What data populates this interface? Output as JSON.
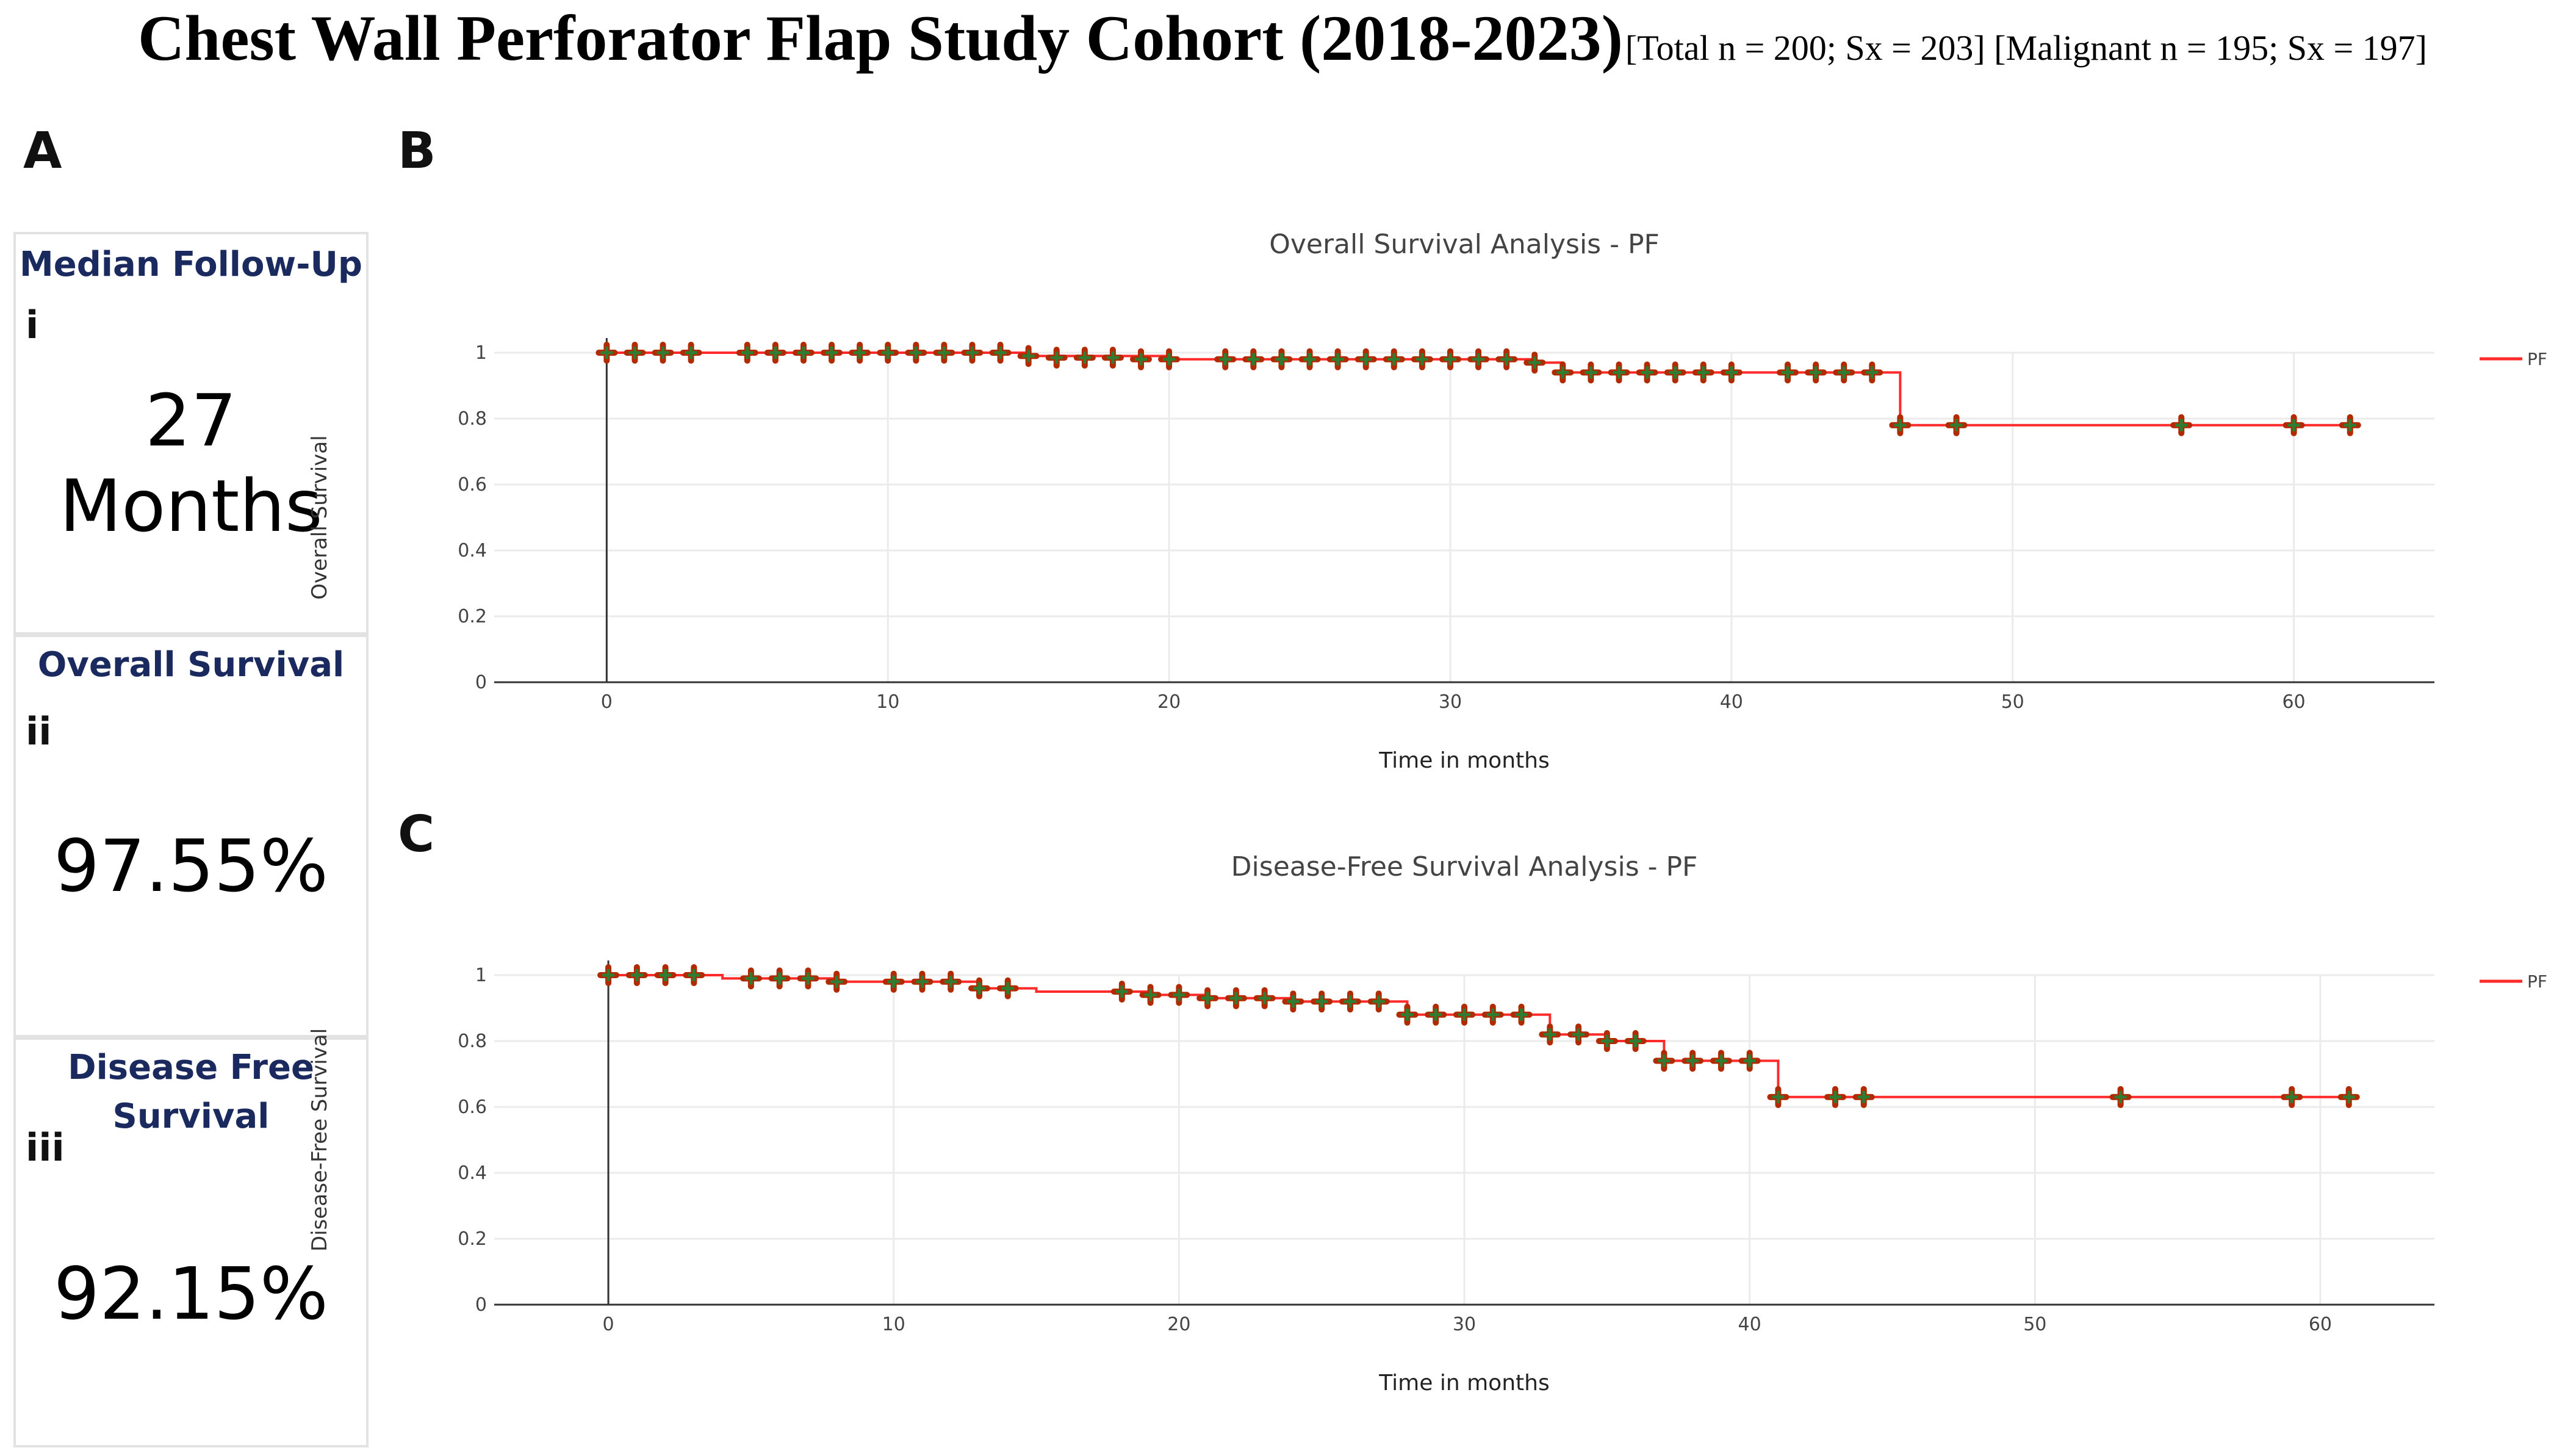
{
  "header": {
    "title": "Chest Wall Perforator Flap Study Cohort (2018-2023)",
    "subtitle": "[Total n = 200; Sx = 203] [Malignant n = 195; Sx = 197]"
  },
  "panels": {
    "a": "A",
    "b": "B",
    "c": "C"
  },
  "stats": [
    {
      "title": "Median Follow-Up",
      "roman": "i",
      "value_line1": "27",
      "value_line2": "Months"
    },
    {
      "title": "Overall Survival",
      "roman": "ii",
      "value": "97.55%"
    },
    {
      "title_line1": "Disease Free",
      "title_line2": "Survival",
      "roman": "iii",
      "value": "92.15%"
    }
  ],
  "colors": {
    "curve": "#ff2b2b",
    "censor_fill": "#2e7d32",
    "censor_stroke": "#b22b00",
    "axis": "#333333",
    "grid": "#ebebeb",
    "stat_title": "#1b2a5e"
  },
  "chart_data": [
    {
      "type": "line",
      "title": "Overall Survival Analysis - PF",
      "xlabel": "Time in months",
      "ylabel": "Overall Survival",
      "xlim": [
        -4,
        65
      ],
      "ylim": [
        0,
        1
      ],
      "xticks": [
        0,
        10,
        20,
        30,
        40,
        50,
        60
      ],
      "yticks": [
        0,
        0.2,
        0.4,
        0.6,
        0.8,
        1
      ],
      "grid": true,
      "legend": "top-right",
      "series": [
        {
          "name": "PF",
          "steps": [
            [
              0,
              1
            ],
            [
              15,
              0.99
            ],
            [
              20,
              0.98
            ],
            [
              33,
              0.97
            ],
            [
              34,
              0.94
            ],
            [
              46,
              0.78
            ],
            [
              62,
              0.78
            ]
          ],
          "censored": [
            [
              0,
              1
            ],
            [
              1,
              1
            ],
            [
              2,
              1
            ],
            [
              3,
              1
            ],
            [
              5,
              1
            ],
            [
              6,
              1
            ],
            [
              7,
              1
            ],
            [
              8,
              1
            ],
            [
              9,
              1
            ],
            [
              10,
              1
            ],
            [
              11,
              1
            ],
            [
              12,
              1
            ],
            [
              13,
              1
            ],
            [
              14,
              1
            ],
            [
              15,
              0.99
            ],
            [
              16,
              0.985
            ],
            [
              17,
              0.985
            ],
            [
              18,
              0.985
            ],
            [
              19,
              0.98
            ],
            [
              20,
              0.98
            ],
            [
              22,
              0.98
            ],
            [
              23,
              0.98
            ],
            [
              24,
              0.98
            ],
            [
              25,
              0.98
            ],
            [
              26,
              0.98
            ],
            [
              27,
              0.98
            ],
            [
              28,
              0.98
            ],
            [
              29,
              0.98
            ],
            [
              30,
              0.98
            ],
            [
              31,
              0.98
            ],
            [
              32,
              0.98
            ],
            [
              33,
              0.97
            ],
            [
              34,
              0.94
            ],
            [
              35,
              0.94
            ],
            [
              36,
              0.94
            ],
            [
              37,
              0.94
            ],
            [
              38,
              0.94
            ],
            [
              39,
              0.94
            ],
            [
              40,
              0.94
            ],
            [
              42,
              0.94
            ],
            [
              43,
              0.94
            ],
            [
              44,
              0.94
            ],
            [
              45,
              0.94
            ],
            [
              46,
              0.78
            ],
            [
              48,
              0.78
            ],
            [
              56,
              0.78
            ],
            [
              60,
              0.78
            ],
            [
              62,
              0.78
            ]
          ]
        }
      ]
    },
    {
      "type": "line",
      "title": "Disease-Free Survival Analysis - PF",
      "xlabel": "Time in months",
      "ylabel": "Disease-Free Survival",
      "xlim": [
        -4,
        64
      ],
      "ylim": [
        0,
        1
      ],
      "xticks": [
        0,
        10,
        20,
        30,
        40,
        50,
        60
      ],
      "yticks": [
        0,
        0.2,
        0.4,
        0.6,
        0.8,
        1
      ],
      "grid": true,
      "legend": "top-right",
      "series": [
        {
          "name": "PF",
          "steps": [
            [
              0,
              1
            ],
            [
              4,
              0.99
            ],
            [
              8,
              0.98
            ],
            [
              13,
              0.96
            ],
            [
              15,
              0.95
            ],
            [
              19,
              0.94
            ],
            [
              21,
              0.93
            ],
            [
              24,
              0.92
            ],
            [
              28,
              0.88
            ],
            [
              33,
              0.82
            ],
            [
              35,
              0.8
            ],
            [
              37,
              0.74
            ],
            [
              41,
              0.63
            ],
            [
              61,
              0.63
            ]
          ],
          "censored": [
            [
              0,
              1
            ],
            [
              1,
              1
            ],
            [
              2,
              1
            ],
            [
              3,
              1
            ],
            [
              5,
              0.99
            ],
            [
              6,
              0.99
            ],
            [
              7,
              0.99
            ],
            [
              8,
              0.98
            ],
            [
              10,
              0.98
            ],
            [
              11,
              0.98
            ],
            [
              12,
              0.98
            ],
            [
              13,
              0.96
            ],
            [
              14,
              0.96
            ],
            [
              18,
              0.95
            ],
            [
              19,
              0.94
            ],
            [
              20,
              0.94
            ],
            [
              21,
              0.93
            ],
            [
              22,
              0.93
            ],
            [
              23,
              0.93
            ],
            [
              24,
              0.92
            ],
            [
              25,
              0.92
            ],
            [
              26,
              0.92
            ],
            [
              27,
              0.92
            ],
            [
              28,
              0.88
            ],
            [
              29,
              0.88
            ],
            [
              30,
              0.88
            ],
            [
              31,
              0.88
            ],
            [
              32,
              0.88
            ],
            [
              33,
              0.82
            ],
            [
              34,
              0.82
            ],
            [
              35,
              0.8
            ],
            [
              36,
              0.8
            ],
            [
              37,
              0.74
            ],
            [
              38,
              0.74
            ],
            [
              39,
              0.74
            ],
            [
              40,
              0.74
            ],
            [
              41,
              0.63
            ],
            [
              43,
              0.63
            ],
            [
              44,
              0.63
            ],
            [
              53,
              0.63
            ],
            [
              59,
              0.63
            ],
            [
              61,
              0.63
            ]
          ]
        }
      ]
    }
  ]
}
